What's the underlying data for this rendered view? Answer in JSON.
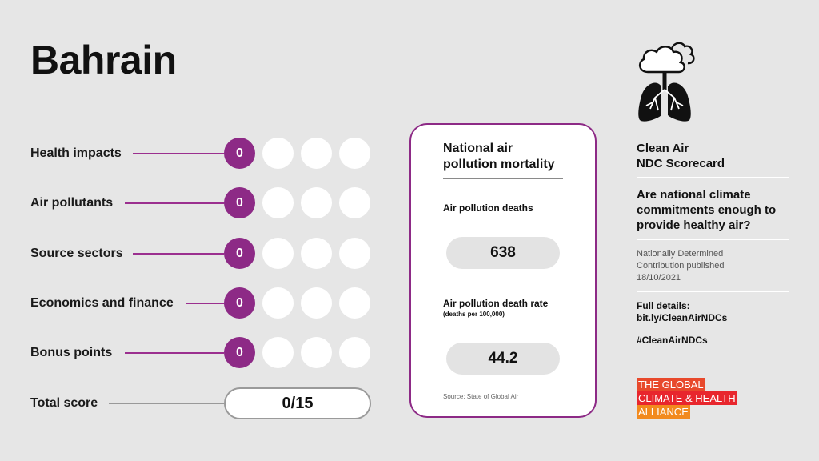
{
  "country": "Bahrain",
  "criteria": [
    {
      "label": "Health impacts",
      "score": "0"
    },
    {
      "label": "Air pollutants",
      "score": "0"
    },
    {
      "label": "Source sectors",
      "score": "0"
    },
    {
      "label": "Economics and finance",
      "score": "0"
    },
    {
      "label": "Bonus points",
      "score": "0"
    }
  ],
  "total": {
    "label": "Total score",
    "value": "0/15"
  },
  "card": {
    "title": "National air pollution mortality",
    "deaths_label": "Air pollution deaths",
    "deaths_value": "638",
    "rate_label": "Air pollution death rate",
    "rate_sub": "(deaths per 100,000)",
    "rate_value": "44.2",
    "source": "Source: State of Global Air"
  },
  "side": {
    "title_line1": "Clean Air",
    "title_line2": "NDC Scorecard",
    "question": "Are national climate commitments enough to provide healthy air?",
    "ndc_line1": "Nationally Determined",
    "ndc_line2": "Contribution published",
    "ndc_date": "18/10/2021",
    "details_label": "Full details:",
    "details_link": "bit.ly/CleanAirNDCs",
    "hashtag": "#CleanAirNDCs",
    "org_line1": "THE GLOBAL",
    "org_line2": "CLIMATE & HEALTH",
    "org_line3": "ALLIANCE"
  },
  "colors": {
    "accent": "#8d2a86",
    "background": "#e6e6e6"
  },
  "icons": [
    "cloud-lungs-icon"
  ]
}
